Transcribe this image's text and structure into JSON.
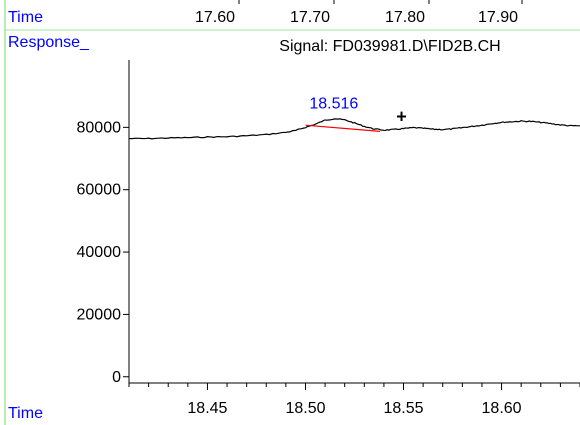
{
  "header": {
    "axis_label": "Time",
    "ticks": [
      "17.60",
      "17.70",
      "17.80",
      "17.90"
    ]
  },
  "chart_data": {
    "type": "line",
    "title": "Signal: FD039981.D\\FID2B.CH",
    "ylabel": "Response_",
    "xlabel": "Time",
    "xlim": [
      18.41,
      18.64
    ],
    "ylim": [
      -2000,
      100000
    ],
    "x_ticks": [
      18.45,
      18.5,
      18.55,
      18.6
    ],
    "x_tick_labels": [
      "18.45",
      "18.50",
      "18.55",
      "18.60"
    ],
    "y_ticks": [
      0,
      20000,
      40000,
      60000,
      80000
    ],
    "y_tick_labels": [
      "0",
      "20000",
      "40000",
      "60000",
      "80000"
    ],
    "grid": false,
    "series": [
      {
        "color": "#000000",
        "points": [
          [
            18.41,
            76400
          ],
          [
            18.42,
            76400
          ],
          [
            18.43,
            76600
          ],
          [
            18.44,
            76700
          ],
          [
            18.45,
            76900
          ],
          [
            18.46,
            77000
          ],
          [
            18.47,
            77300
          ],
          [
            18.48,
            77700
          ],
          [
            18.49,
            78400
          ],
          [
            18.495,
            79000
          ],
          [
            18.5,
            80000
          ],
          [
            18.505,
            81000
          ],
          [
            18.51,
            82300
          ],
          [
            18.515,
            82800
          ],
          [
            18.52,
            82400
          ],
          [
            18.525,
            81400
          ],
          [
            18.53,
            80300
          ],
          [
            18.535,
            79500
          ],
          [
            18.54,
            79100
          ],
          [
            18.545,
            79300
          ],
          [
            18.55,
            79600
          ],
          [
            18.555,
            79900
          ],
          [
            18.56,
            79700
          ],
          [
            18.565,
            79400
          ],
          [
            18.57,
            79300
          ],
          [
            18.575,
            79500
          ],
          [
            18.58,
            79900
          ],
          [
            18.585,
            80300
          ],
          [
            18.59,
            80700
          ],
          [
            18.595,
            81200
          ],
          [
            18.6,
            81600
          ],
          [
            18.605,
            81800
          ],
          [
            18.61,
            82000
          ],
          [
            18.615,
            81900
          ],
          [
            18.62,
            81600
          ],
          [
            18.625,
            81200
          ],
          [
            18.63,
            80800
          ],
          [
            18.635,
            80500
          ],
          [
            18.64,
            80500
          ]
        ]
      }
    ],
    "baseline": {
      "color": "#ff0000",
      "points": [
        [
          18.5,
          80700
        ],
        [
          18.538,
          78700
        ]
      ]
    },
    "annotations": [
      {
        "text": "18.516",
        "x": 18.516,
        "y": 82800,
        "color": "#0000ff"
      },
      {
        "text": "+",
        "x": 18.549,
        "y": 80600,
        "color": "#000000"
      }
    ]
  }
}
